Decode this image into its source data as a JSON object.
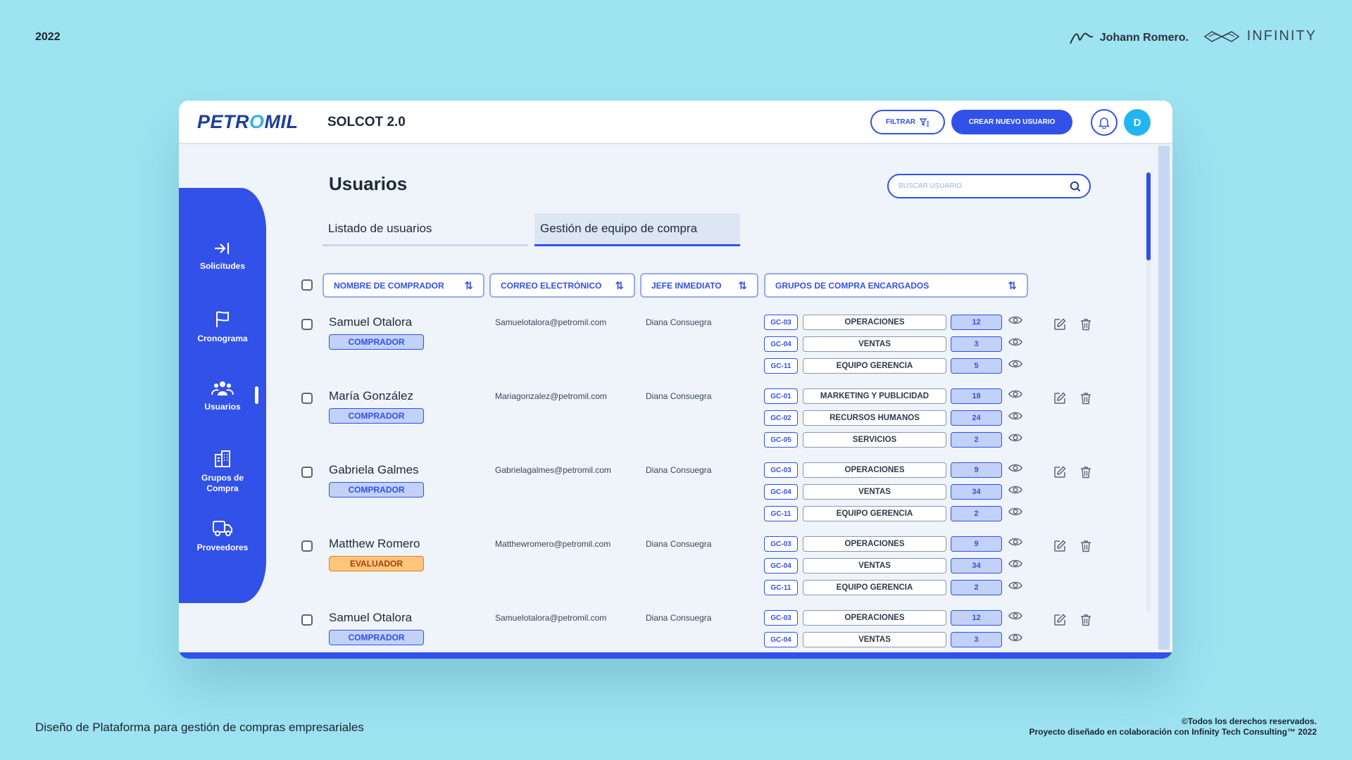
{
  "presentation": {
    "year": "2022",
    "author": "Johann Romero.",
    "partner": "INFINITY",
    "caption": "Diseño de Plataforma para gestión de compras empresariales",
    "rights_line1": "©Todos los derechos reservados.",
    "rights_line2": "Proyecto diseñado en colaboración con Infinity Tech Consulting™ 2022"
  },
  "header": {
    "logo_left": "PETR",
    "logo_mid": "O",
    "logo_right": "MIL",
    "app_name": "SOLCOT 2.0",
    "filter_label": "FILTRAR",
    "create_label": "CREAR NUEVO USUARIO",
    "avatar_initial": "D"
  },
  "sidebar": {
    "items": [
      {
        "label": "Solicitudes",
        "icon": "login-arrow-icon"
      },
      {
        "label": "Cronograma",
        "icon": "flag-icon"
      },
      {
        "label": "Usuarios",
        "icon": "users-icon"
      },
      {
        "label": "Grupos de Compra",
        "icon": "building-icon"
      },
      {
        "label": "Proveedores",
        "icon": "truck-icon"
      }
    ],
    "active": "Usuarios"
  },
  "main": {
    "title": "Usuarios",
    "search_placeholder": "BUSCAR USUARIO",
    "tabs": [
      {
        "label": "Listado de usuarios",
        "active": false
      },
      {
        "label": "Gestión de equipo de compra",
        "active": true
      }
    ],
    "columns": [
      "NOMBRE DE COMPRADOR",
      "CORREO ELECTRÓNICO",
      "JEFE INMEDIATO",
      "GRUPOS DE COMPRA ENCARGADOS"
    ],
    "rows": [
      {
        "name": "Samuel Otalora",
        "role": "COMPRADOR",
        "email": "Samuelotalora@petromil.com",
        "boss": "Diana Consuegra",
        "groups": [
          {
            "code": "GC-03",
            "name": "OPERACIONES",
            "count": "12"
          },
          {
            "code": "GC-04",
            "name": "VENTAS",
            "count": "3"
          },
          {
            "code": "GC-11",
            "name": "EQUIPO GERENCIA",
            "count": "5"
          }
        ]
      },
      {
        "name": "María González",
        "role": "COMPRADOR",
        "email": "Mariagonzalez@petromil.com",
        "boss": "Diana Consuegra",
        "groups": [
          {
            "code": "GC-01",
            "name": "MARKETING Y PUBLICIDAD",
            "count": "18"
          },
          {
            "code": "GC-02",
            "name": "RECURSOS HUMANOS",
            "count": "24"
          },
          {
            "code": "GC-05",
            "name": "SERVICIOS",
            "count": "2"
          }
        ]
      },
      {
        "name": "Gabriela Galmes",
        "role": "COMPRADOR",
        "email": "Gabrielagalmes@petromil.com",
        "boss": "Diana Consuegra",
        "groups": [
          {
            "code": "GC-03",
            "name": "OPERACIONES",
            "count": "9"
          },
          {
            "code": "GC-04",
            "name": "VENTAS",
            "count": "34"
          },
          {
            "code": "GC-11",
            "name": "EQUIPO GERENCIA",
            "count": "2"
          }
        ]
      },
      {
        "name": "Matthew Romero",
        "role": "EVALUADOR",
        "email": "Matthewromero@petromil.com",
        "boss": "Diana Consuegra",
        "groups": [
          {
            "code": "GC-03",
            "name": "OPERACIONES",
            "count": "9"
          },
          {
            "code": "GC-04",
            "name": "VENTAS",
            "count": "34"
          },
          {
            "code": "GC-11",
            "name": "EQUIPO GERENCIA",
            "count": "2"
          }
        ]
      },
      {
        "name": "Samuel Otalora",
        "role": "COMPRADOR",
        "email": "Samuelotalora@petromil.com",
        "boss": "Diana Consuegra",
        "groups": [
          {
            "code": "GC-03",
            "name": "OPERACIONES",
            "count": "12"
          },
          {
            "code": "GC-04",
            "name": "VENTAS",
            "count": "3"
          }
        ]
      }
    ]
  },
  "colors": {
    "background": "#9ee3f0",
    "primary": "#3151e8",
    "avatar": "#23b5ef",
    "evaluator": "#ffc57a"
  }
}
